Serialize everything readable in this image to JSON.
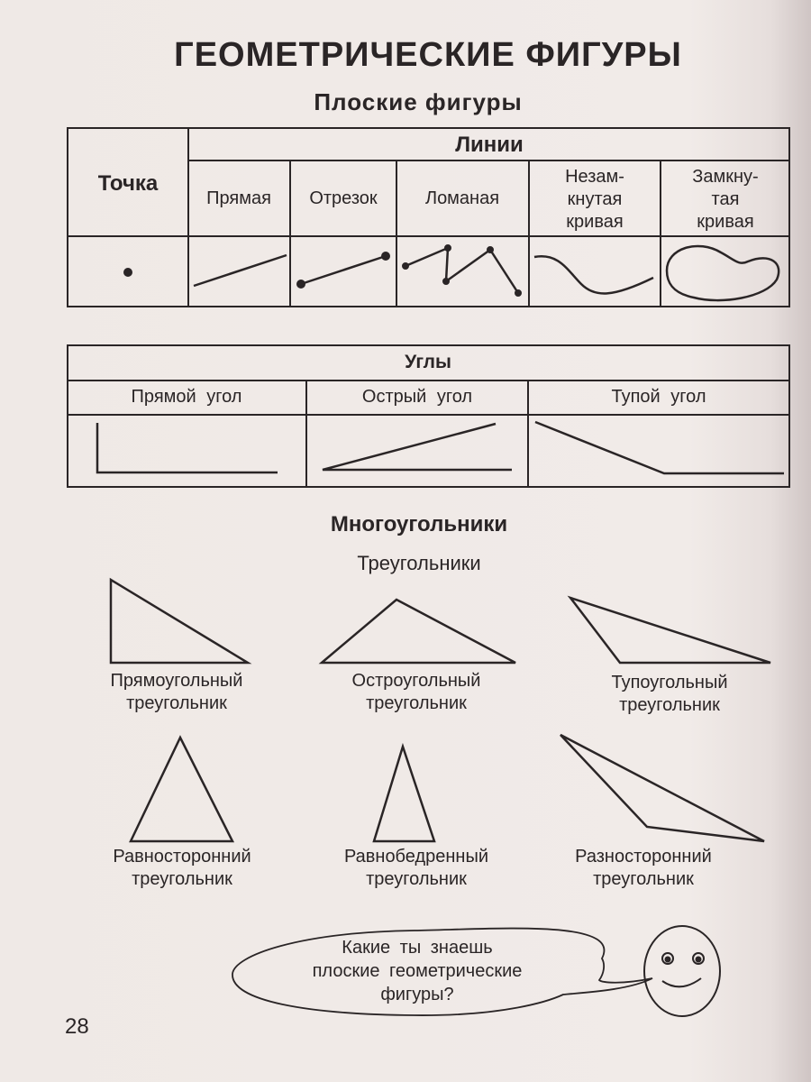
{
  "title": "ГЕОМЕТРИЧЕСКИЕ ФИГУРЫ",
  "subtitle": "Плоские фигуры",
  "lines_table": {
    "point_header": "Точка",
    "lines_header": "Линии",
    "columns": [
      "Прямая",
      "Отрезок",
      "Ломаная",
      "Незам-\nкнутая\nкривая",
      "Замкну-\nтая\nкривая"
    ]
  },
  "angles_table": {
    "header": "Углы",
    "columns": [
      "Прямой угол",
      "Острый угол",
      "Тупой угол"
    ]
  },
  "polygons_heading": "Многоугольники",
  "triangles_heading": "Треугольники",
  "triangles": [
    {
      "name": "Прямоугольный",
      "word": "треугольник"
    },
    {
      "name": "Остроугольный",
      "word": "треугольник"
    },
    {
      "name": "Тупоугольный",
      "word": "треугольник"
    },
    {
      "name": "Равносторонний",
      "word": "треугольник"
    },
    {
      "name": "Равнобедренный",
      "word": "треугольник"
    },
    {
      "name": "Разносторонний",
      "word": "треугольник"
    }
  ],
  "speech_bubble": [
    "Какие ты знаешь",
    "плоские геометрические",
    "фигуры?"
  ],
  "page_number": "28",
  "ink_color": "#2a2526"
}
